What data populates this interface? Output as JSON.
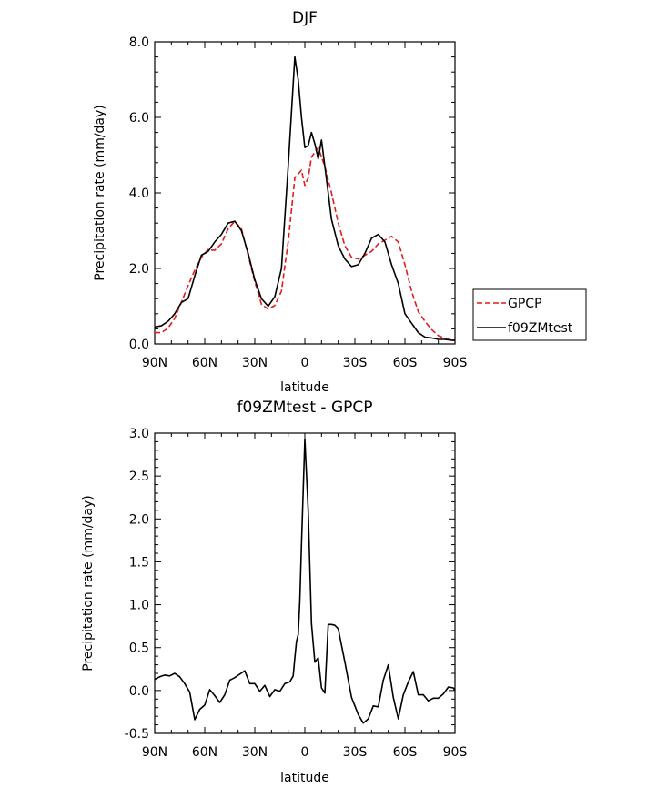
{
  "chart_data": [
    {
      "type": "line",
      "title": "DJF",
      "xlabel": "latitude",
      "ylabel": "Precipitation rate (mm/day)",
      "xlim": [
        90,
        -90
      ],
      "ylim": [
        0,
        8
      ],
      "xticks": [
        90,
        60,
        30,
        0,
        -30,
        -60,
        -90
      ],
      "xtick_labels": [
        "90N",
        "60N",
        "30N",
        "0",
        "30S",
        "60S",
        "90S"
      ],
      "yticks": [
        0,
        2,
        4,
        6,
        8
      ],
      "ytick_labels": [
        "0.0",
        "2.0",
        "4.0",
        "6.0",
        "8.0"
      ],
      "legend_position": "right",
      "series": [
        {
          "name": "GPCP",
          "color": "#e41a1c",
          "style": "dashed",
          "x": [
            90,
            86,
            82,
            78,
            74,
            70,
            66,
            62,
            58,
            54,
            50,
            46,
            42,
            38,
            34,
            30,
            26,
            22,
            18,
            14,
            10,
            6,
            2,
            0,
            -2,
            -4,
            -8,
            -12,
            -16,
            -20,
            -24,
            -28,
            -32,
            -36,
            -40,
            -44,
            -48,
            -52,
            -56,
            -60,
            -64,
            -68,
            -72,
            -76,
            -80,
            -84,
            -88,
            -90
          ],
          "values": [
            0.3,
            0.3,
            0.42,
            0.68,
            1.1,
            1.55,
            1.95,
            2.3,
            2.5,
            2.48,
            2.65,
            3.05,
            3.25,
            3.05,
            2.35,
            1.65,
            1.05,
            0.92,
            1.02,
            1.4,
            2.7,
            4.4,
            4.6,
            4.2,
            4.4,
            4.95,
            5.2,
            4.7,
            4.0,
            3.2,
            2.6,
            2.3,
            2.25,
            2.35,
            2.45,
            2.65,
            2.75,
            2.85,
            2.7,
            2.1,
            1.4,
            0.85,
            0.6,
            0.38,
            0.22,
            0.15,
            0.1,
            0.1
          ]
        },
        {
          "name": "f09ZMtest",
          "color": "#000000",
          "style": "solid",
          "x": [
            90,
            86,
            82,
            78,
            74,
            70,
            66,
            62,
            58,
            54,
            50,
            46,
            42,
            38,
            34,
            30,
            26,
            22,
            18,
            14,
            10,
            6,
            4,
            2,
            0,
            -2,
            -4,
            -6,
            -8,
            -10,
            -12,
            -14,
            -16,
            -20,
            -24,
            -28,
            -32,
            -36,
            -40,
            -44,
            -48,
            -52,
            -56,
            -60,
            -64,
            -68,
            -72,
            -76,
            -80,
            -84,
            -88,
            -90
          ],
          "values": [
            0.45,
            0.48,
            0.6,
            0.8,
            1.1,
            1.2,
            1.8,
            2.35,
            2.45,
            2.7,
            2.9,
            3.2,
            3.25,
            3.0,
            2.4,
            1.7,
            1.2,
            1.0,
            1.25,
            2.0,
            4.7,
            7.6,
            7.0,
            6.0,
            5.2,
            5.25,
            5.6,
            5.3,
            4.9,
            5.4,
            4.7,
            4.0,
            3.3,
            2.6,
            2.25,
            2.05,
            2.1,
            2.4,
            2.8,
            2.9,
            2.7,
            2.1,
            1.6,
            0.8,
            0.55,
            0.3,
            0.18,
            0.16,
            0.12,
            0.12,
            0.1,
            0.1
          ]
        }
      ]
    },
    {
      "type": "line",
      "title": "f09ZMtest - GPCP",
      "xlabel": "latitude",
      "ylabel": "Precipitation rate (mm/day)",
      "xlim": [
        90,
        -90
      ],
      "ylim": [
        -0.5,
        3.0
      ],
      "xticks": [
        90,
        60,
        30,
        0,
        -30,
        -60,
        -90
      ],
      "xtick_labels": [
        "90N",
        "60N",
        "30N",
        "0",
        "30S",
        "60S",
        "90S"
      ],
      "yticks": [
        -0.5,
        0,
        0.5,
        1,
        1.5,
        2,
        2.5,
        3
      ],
      "ytick_labels": [
        "-0.5",
        "0.0",
        "0.5",
        "1.0",
        "1.5",
        "2.0",
        "2.5",
        "3.0"
      ],
      "series": [
        {
          "color": "#000000",
          "style": "solid",
          "x": [
            90,
            87,
            84,
            81,
            78,
            75,
            72,
            69,
            66,
            63,
            60,
            57,
            54,
            51,
            48,
            45,
            42,
            39,
            36,
            33,
            30,
            27,
            24,
            21,
            18,
            15,
            12,
            9,
            7,
            6,
            5,
            4,
            3,
            2,
            0,
            -2,
            -4,
            -6,
            -8,
            -10,
            -12,
            -14,
            -16,
            -18,
            -20,
            -24,
            -28,
            -32,
            -35,
            -38,
            -41,
            -44,
            -47,
            -50,
            -53,
            -56,
            -59,
            -62,
            -65,
            -68,
            -71,
            -74,
            -77,
            -80,
            -83,
            -86,
            -89,
            -90
          ],
          "values": [
            0.13,
            0.16,
            0.18,
            0.17,
            0.2,
            0.16,
            0.08,
            -0.02,
            -0.34,
            -0.22,
            -0.17,
            0.01,
            -0.06,
            -0.14,
            -0.05,
            0.12,
            0.15,
            0.19,
            0.23,
            0.08,
            0.08,
            -0.01,
            0.06,
            -0.07,
            0.01,
            -0.01,
            0.08,
            0.1,
            0.17,
            0.38,
            0.57,
            0.65,
            1.05,
            1.7,
            2.93,
            2.1,
            0.78,
            0.33,
            0.38,
            0.03,
            -0.03,
            0.77,
            0.77,
            0.76,
            0.72,
            0.33,
            -0.08,
            -0.28,
            -0.38,
            -0.33,
            -0.18,
            -0.19,
            0.12,
            0.3,
            -0.08,
            -0.33,
            -0.05,
            0.1,
            0.22,
            -0.05,
            -0.05,
            -0.12,
            -0.09,
            -0.09,
            -0.04,
            0.04,
            0.03,
            0.0
          ]
        }
      ]
    }
  ]
}
